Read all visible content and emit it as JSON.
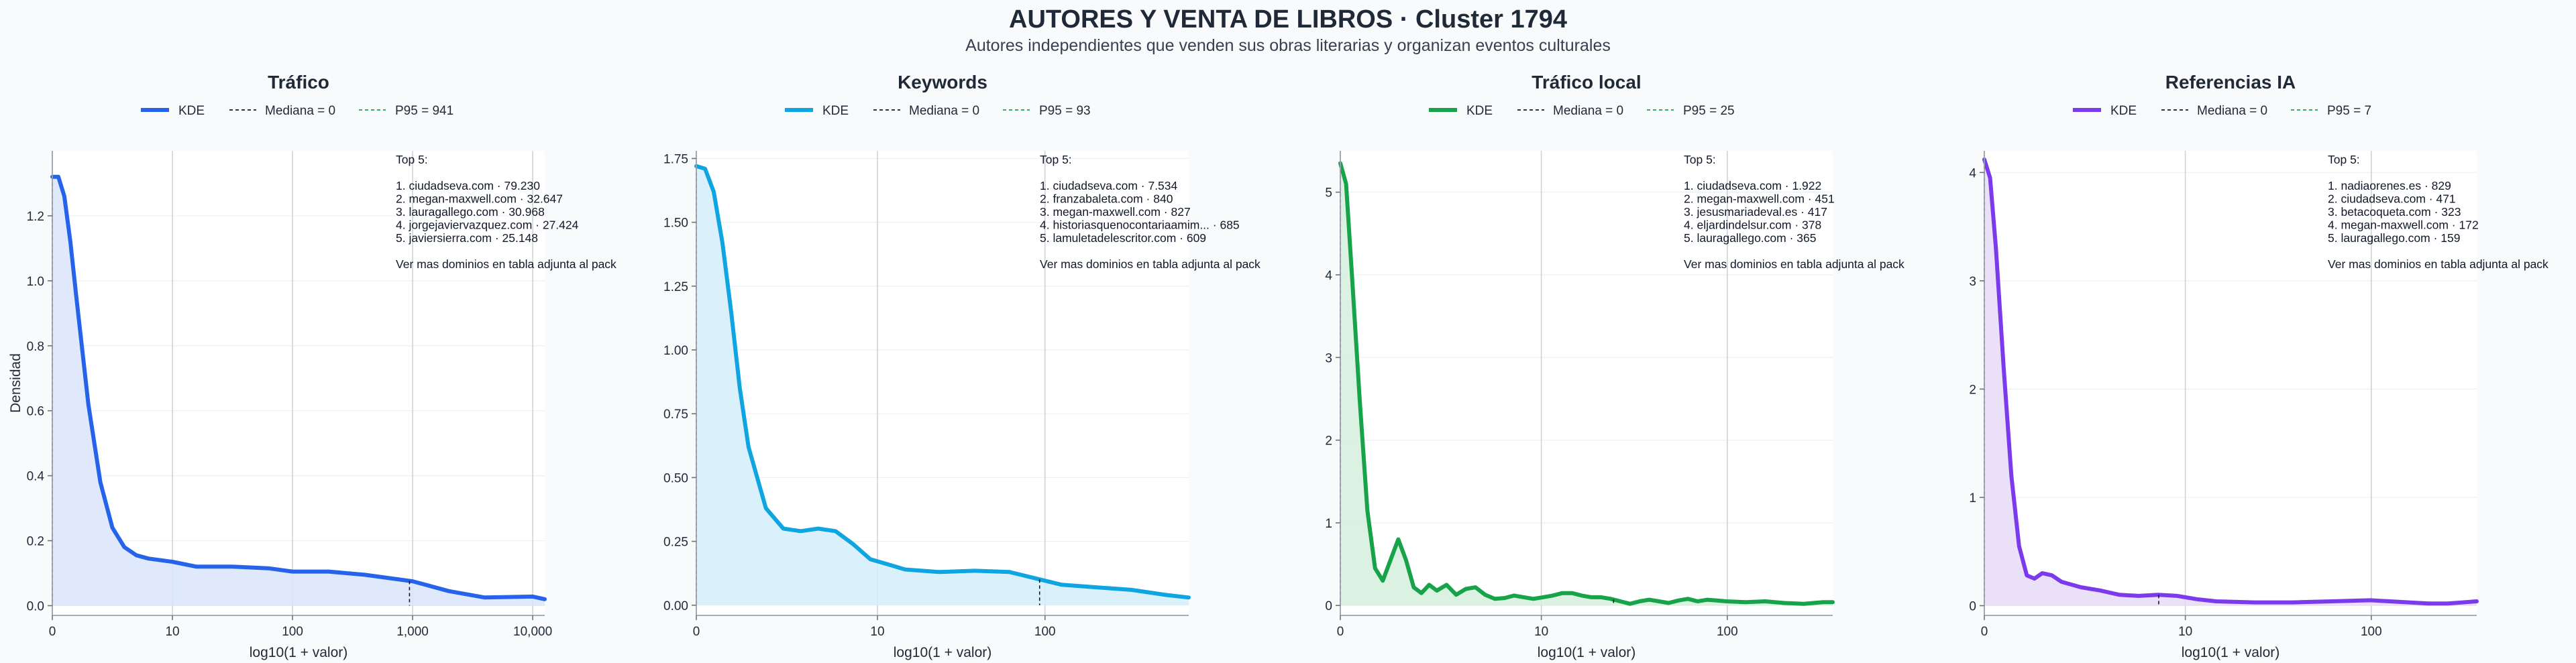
{
  "header": {
    "title": "AUTORES Y VENTA DE LIBROS · Cluster 1794",
    "subtitle": "Autores independientes que venden sus obras literarias y organizan eventos culturales"
  },
  "chart_data": [
    {
      "type": "area",
      "title": "Tráfico",
      "color": "#2563eb",
      "fill": "#dbe4fb",
      "xlabel": "log10(1 + valor)",
      "ylabel": "Densidad",
      "xlim": [
        0,
        4.1
      ],
      "ylim": [
        -0.03,
        1.4
      ],
      "x_ticks": [
        {
          "v": 0,
          "label": "0"
        },
        {
          "v": 1,
          "label": "10"
        },
        {
          "v": 2,
          "label": "100"
        },
        {
          "v": 3,
          "label": "1,000"
        },
        {
          "v": 4,
          "label": "10,000"
        }
      ],
      "y_ticks": [
        {
          "v": 0,
          "label": "0.0"
        },
        {
          "v": 0.2,
          "label": "0.2"
        },
        {
          "v": 0.4,
          "label": "0.4"
        },
        {
          "v": 0.6,
          "label": "0.6"
        },
        {
          "v": 0.8,
          "label": "0.8"
        },
        {
          "v": 1.0,
          "label": "1.0"
        },
        {
          "v": 1.2,
          "label": "1.2"
        }
      ],
      "legend": {
        "kde": "KDE",
        "median": "Mediana = 0",
        "p95": "P95 = 941"
      },
      "median_x": 0,
      "p95_x": 2.974,
      "series": [
        {
          "x": [
            0,
            0.05,
            0.1,
            0.15,
            0.2,
            0.3,
            0.4,
            0.5,
            0.6,
            0.7,
            0.8,
            1.0,
            1.2,
            1.5,
            1.8,
            2.0,
            2.3,
            2.6,
            3.0,
            3.3,
            3.6,
            4.0,
            4.1
          ],
          "y": [
            1.32,
            1.32,
            1.26,
            1.12,
            0.95,
            0.62,
            0.38,
            0.24,
            0.18,
            0.155,
            0.145,
            0.135,
            0.12,
            0.12,
            0.115,
            0.105,
            0.105,
            0.095,
            0.075,
            0.045,
            0.025,
            0.028,
            0.02
          ]
        }
      ],
      "annotation": {
        "heading": "Top 5:",
        "items": [
          "1. ciudadseva.com · 79.230",
          "2. megan-maxwell.com · 32.647",
          "3. lauragallego.com · 30.968",
          "4. jorgejaviervazquez.com · 27.424",
          "5. javiersierra.com · 25.148"
        ],
        "footer": "Ver mas dominios en tabla adjunta al pack"
      }
    },
    {
      "type": "area",
      "title": "Keywords",
      "color": "#0ea5e0",
      "fill": "#d3eefb",
      "xlabel": "log10(1 + valor)",
      "ylabel": "",
      "xlim": [
        0,
        2.83
      ],
      "ylim": [
        -0.04,
        1.78
      ],
      "x_ticks": [
        {
          "v": 0,
          "label": "0"
        },
        {
          "v": 1.041,
          "label": "10"
        },
        {
          "v": 2.004,
          "label": "100"
        }
      ],
      "y_ticks": [
        {
          "v": 0,
          "label": "0.00"
        },
        {
          "v": 0.25,
          "label": "0.25"
        },
        {
          "v": 0.5,
          "label": "0.50"
        },
        {
          "v": 0.75,
          "label": "0.75"
        },
        {
          "v": 1.0,
          "label": "1.00"
        },
        {
          "v": 1.25,
          "label": "1.25"
        },
        {
          "v": 1.5,
          "label": "1.50"
        },
        {
          "v": 1.75,
          "label": "1.75"
        }
      ],
      "legend": {
        "kde": "KDE",
        "median": "Mediana = 0",
        "p95": "P95 = 93"
      },
      "median_x": 0,
      "p95_x": 1.973,
      "series": [
        {
          "x": [
            0,
            0.05,
            0.1,
            0.15,
            0.2,
            0.25,
            0.3,
            0.4,
            0.5,
            0.6,
            0.7,
            0.8,
            0.9,
            1.0,
            1.1,
            1.2,
            1.4,
            1.6,
            1.8,
            1.95,
            2.1,
            2.3,
            2.5,
            2.7,
            2.83
          ],
          "y": [
            1.72,
            1.71,
            1.62,
            1.42,
            1.15,
            0.85,
            0.62,
            0.38,
            0.3,
            0.29,
            0.3,
            0.29,
            0.24,
            0.18,
            0.16,
            0.14,
            0.13,
            0.135,
            0.13,
            0.105,
            0.08,
            0.07,
            0.06,
            0.04,
            0.03
          ]
        }
      ],
      "annotation": {
        "heading": "Top 5:",
        "items": [
          "1. ciudadseva.com · 7.534",
          "2. franzabaleta.com · 840",
          "3. megan-maxwell.com · 827",
          "4. historiasquenocontariaamim... · 685",
          "5. lamuletadelescritor.com · 609"
        ],
        "footer": "Ver mas dominios en tabla adjunta al pack"
      }
    },
    {
      "type": "area",
      "title": "Tráfico local",
      "color": "#16a34a",
      "fill": "#d5efdc",
      "xlabel": "log10(1 + valor)",
      "ylabel": "",
      "xlim": [
        0,
        2.55
      ],
      "ylim": [
        -0.12,
        5.5
      ],
      "x_ticks": [
        {
          "v": 0,
          "label": "0"
        },
        {
          "v": 1.041,
          "label": "10"
        },
        {
          "v": 2.004,
          "label": "100"
        }
      ],
      "y_ticks": [
        {
          "v": 0,
          "label": "0"
        },
        {
          "v": 1,
          "label": "1"
        },
        {
          "v": 2,
          "label": "2"
        },
        {
          "v": 3,
          "label": "3"
        },
        {
          "v": 4,
          "label": "4"
        },
        {
          "v": 5,
          "label": "5"
        }
      ],
      "legend": {
        "kde": "KDE",
        "median": "Mediana = 0",
        "p95": "P95 = 25"
      },
      "median_x": 0,
      "p95_x": 1.415,
      "series": [
        {
          "x": [
            0,
            0.03,
            0.06,
            0.1,
            0.14,
            0.18,
            0.22,
            0.26,
            0.3,
            0.34,
            0.38,
            0.42,
            0.46,
            0.5,
            0.55,
            0.6,
            0.65,
            0.7,
            0.75,
            0.8,
            0.85,
            0.9,
            0.95,
            1.0,
            1.05,
            1.1,
            1.15,
            1.2,
            1.25,
            1.3,
            1.35,
            1.4,
            1.45,
            1.5,
            1.55,
            1.6,
            1.65,
            1.7,
            1.75,
            1.8,
            1.85,
            1.9,
            1.95,
            2.0,
            2.1,
            2.2,
            2.3,
            2.4,
            2.5,
            2.55
          ],
          "y": [
            5.35,
            5.1,
            4.0,
            2.5,
            1.15,
            0.45,
            0.3,
            0.55,
            0.8,
            0.55,
            0.22,
            0.15,
            0.25,
            0.18,
            0.25,
            0.13,
            0.2,
            0.22,
            0.13,
            0.08,
            0.09,
            0.12,
            0.1,
            0.08,
            0.1,
            0.12,
            0.15,
            0.15,
            0.12,
            0.1,
            0.1,
            0.08,
            0.05,
            0.02,
            0.05,
            0.07,
            0.05,
            0.03,
            0.06,
            0.08,
            0.05,
            0.07,
            0.06,
            0.05,
            0.04,
            0.05,
            0.03,
            0.02,
            0.04,
            0.04
          ]
        }
      ],
      "annotation": {
        "heading": "Top 5:",
        "items": [
          "1. ciudadseva.com · 1.922",
          "2. megan-maxwell.com · 451",
          "3. jesusmariadeval.es · 417",
          "4. eljardindelsur.com · 378",
          "5. lauragallego.com · 365"
        ],
        "footer": "Ver mas dominios en tabla adjunta al pack"
      }
    },
    {
      "type": "area",
      "title": "Referencias IA",
      "color": "#7c3aed",
      "fill": "#e6dbf7",
      "xlabel": "log10(1 + valor)",
      "ylabel": "",
      "xlim": [
        0,
        2.55
      ],
      "ylim": [
        -0.09,
        4.2
      ],
      "x_ticks": [
        {
          "v": 0,
          "label": "0"
        },
        {
          "v": 1.041,
          "label": "10"
        },
        {
          "v": 2.004,
          "label": "100"
        }
      ],
      "y_ticks": [
        {
          "v": 0,
          "label": "0"
        },
        {
          "v": 1,
          "label": "1"
        },
        {
          "v": 2,
          "label": "2"
        },
        {
          "v": 3,
          "label": "3"
        },
        {
          "v": 4,
          "label": "4"
        }
      ],
      "legend": {
        "kde": "KDE",
        "median": "Mediana = 0",
        "p95": "P95 = 7"
      },
      "median_x": 0,
      "p95_x": 0.903,
      "series": [
        {
          "x": [
            0,
            0.03,
            0.06,
            0.1,
            0.14,
            0.18,
            0.22,
            0.26,
            0.3,
            0.35,
            0.4,
            0.5,
            0.6,
            0.7,
            0.8,
            0.9,
            1.0,
            1.1,
            1.2,
            1.4,
            1.6,
            1.8,
            2.0,
            2.1,
            2.2,
            2.3,
            2.4,
            2.55
          ],
          "y": [
            4.12,
            3.95,
            3.3,
            2.2,
            1.2,
            0.55,
            0.28,
            0.25,
            0.3,
            0.28,
            0.22,
            0.17,
            0.14,
            0.1,
            0.09,
            0.1,
            0.09,
            0.06,
            0.04,
            0.03,
            0.03,
            0.04,
            0.05,
            0.04,
            0.03,
            0.02,
            0.02,
            0.04
          ]
        }
      ],
      "annotation": {
        "heading": "Top 5:",
        "items": [
          "1. nadiaorenes.es · 829",
          "2. ciudadseva.com · 471",
          "3. betacoqueta.com · 323",
          "4. megan-maxwell.com · 172",
          "5. lauragallego.com · 159"
        ],
        "footer": "Ver mas dominios en tabla adjunta al pack"
      }
    }
  ]
}
